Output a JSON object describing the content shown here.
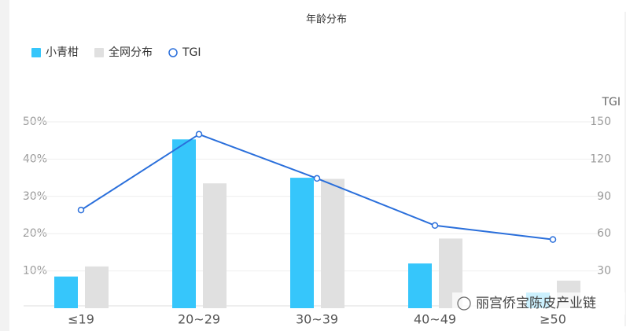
{
  "chart_data": {
    "type": "bar-line",
    "title": "年龄分布",
    "categories": [
      "≤19",
      "20~29",
      "30~39",
      "40~49",
      "≥50"
    ],
    "series": [
      {
        "name": "小青柑",
        "type": "bar",
        "color": "#36c6fb",
        "values": [
          8.5,
          45.3,
          35,
          12,
          4.2
        ]
      },
      {
        "name": "全网分布",
        "type": "bar",
        "color": "#e0e0e0",
        "values": [
          11.2,
          33.5,
          34.7,
          18.7,
          7.4
        ]
      },
      {
        "name": "TGI",
        "type": "line",
        "axis": "y2",
        "color": "#2a6fdb",
        "values": [
          79,
          140,
          104.5,
          66.6,
          55.3
        ]
      }
    ],
    "ylim": [
      0,
      50
    ],
    "yticks": [
      {
        "value": 10,
        "label": "10%"
      },
      {
        "value": 20,
        "label": "20%"
      },
      {
        "value": 30,
        "label": "30%"
      },
      {
        "value": 40,
        "label": "40%"
      },
      {
        "value": 50,
        "label": "50%"
      }
    ],
    "y2label": "TGI",
    "y2lim": [
      0,
      150
    ],
    "y2ticks": [
      30,
      60,
      90,
      120,
      150
    ],
    "grid": true,
    "legend": "top-left",
    "watermark": "丽宫侨宝陈皮产业链"
  }
}
